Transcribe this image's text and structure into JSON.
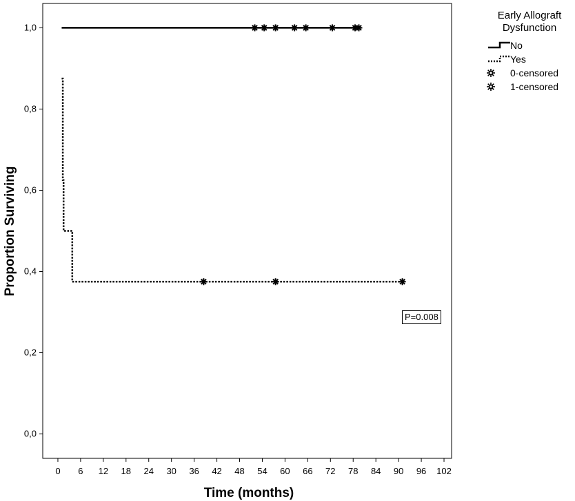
{
  "chart_data": {
    "type": "line",
    "xlabel": "Time (months)",
    "ylabel": "Proportion Surviving",
    "xlim": [
      -4,
      104
    ],
    "ylim": [
      -0.06,
      1.06
    ],
    "x_ticks": [
      0,
      6,
      12,
      18,
      24,
      30,
      36,
      42,
      48,
      54,
      60,
      66,
      72,
      78,
      84,
      90,
      96,
      102
    ],
    "y_ticks": [
      0.0,
      0.2,
      0.4,
      0.6,
      0.8,
      1.0
    ],
    "y_tick_labels": [
      "0,0",
      "0,2",
      "0,4",
      "0,6",
      "0,8",
      "1,0"
    ],
    "grid": false,
    "legend_position": "outside-right",
    "series": [
      {
        "name": "No",
        "line_style": "solid",
        "steps": [
          [
            1,
            1.0
          ],
          [
            80,
            1.0
          ]
        ],
        "censored_x": [
          52,
          54.5,
          57.5,
          62.5,
          65.5,
          72.5,
          78.5,
          79.5
        ]
      },
      {
        "name": "Yes",
        "line_style": "dotted",
        "steps": [
          [
            1,
            0.875
          ],
          [
            1.3,
            0.625
          ],
          [
            1.5,
            0.5
          ],
          [
            3.8,
            0.375
          ],
          [
            91,
            0.375
          ]
        ],
        "censored_x": [
          38.5,
          57.5,
          91
        ]
      }
    ],
    "censored_y": [
      1.0,
      0.375
    ]
  },
  "legend": {
    "title_line1": "Early Allograft",
    "title_line2": "Dysfunction",
    "items": [
      {
        "label": "No",
        "kind": "solid-step"
      },
      {
        "label": "Yes",
        "kind": "dotted-step"
      },
      {
        "label": "0-censored",
        "kind": "censor-mark"
      },
      {
        "label": "1-censored",
        "kind": "censor-mark"
      }
    ]
  },
  "annotation": {
    "pvalue": "P=0.008"
  },
  "colors": {
    "line": "#000000",
    "background": "#ffffff"
  }
}
